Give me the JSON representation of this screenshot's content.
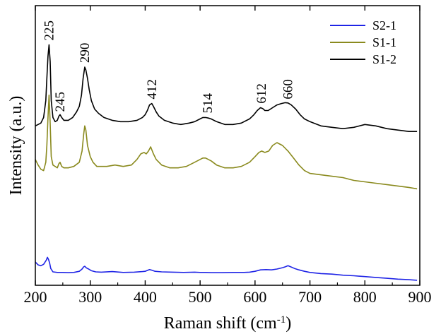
{
  "chart_data": {
    "type": "line",
    "xlabel": "Raman shift (cm",
    "xlabel_sup": "-1",
    "xlabel_suffix": ")",
    "ylabel": "Intensity (a.u.)",
    "xlim": [
      200,
      900
    ],
    "ylim": [
      0,
      1
    ],
    "x_ticks": [
      200,
      300,
      400,
      500,
      600,
      700,
      800,
      900
    ],
    "x_tick_labels": [
      "200",
      "300",
      "400",
      "500",
      "600",
      "700",
      "800",
      "900"
    ],
    "y_tick_labels_shown": false,
    "grid": false,
    "legend_position": "top-right",
    "series": [
      {
        "name": "S2-1",
        "color": "#1f24e6",
        "x": [
          200,
          205,
          210,
          215,
          220,
          222,
          224,
          226,
          228,
          232,
          240,
          250,
          260,
          270,
          280,
          285,
          288,
          290,
          293,
          297,
          302,
          310,
          320,
          340,
          360,
          380,
          395,
          400,
          405,
          408,
          412,
          418,
          430,
          450,
          470,
          490,
          500,
          510,
          520,
          540,
          560,
          580,
          590,
          600,
          610,
          620,
          630,
          640,
          650,
          655,
          660,
          665,
          672,
          680,
          690,
          700,
          720,
          740,
          760,
          780,
          800,
          820,
          840,
          860,
          880,
          895
        ],
        "y": [
          0.083,
          0.073,
          0.07,
          0.075,
          0.09,
          0.1,
          0.092,
          0.08,
          0.06,
          0.048,
          0.046,
          0.046,
          0.045,
          0.046,
          0.05,
          0.058,
          0.066,
          0.068,
          0.062,
          0.058,
          0.052,
          0.048,
          0.047,
          0.049,
          0.046,
          0.047,
          0.049,
          0.05,
          0.054,
          0.056,
          0.054,
          0.05,
          0.048,
          0.047,
          0.046,
          0.047,
          0.046,
          0.046,
          0.045,
          0.045,
          0.046,
          0.046,
          0.047,
          0.05,
          0.055,
          0.056,
          0.055,
          0.058,
          0.063,
          0.066,
          0.07,
          0.066,
          0.06,
          0.055,
          0.05,
          0.046,
          0.042,
          0.04,
          0.036,
          0.034,
          0.031,
          0.028,
          0.025,
          0.022,
          0.02,
          0.018
        ]
      },
      {
        "name": "S1-1",
        "color": "#8a8a1e",
        "x": [
          200,
          205,
          210,
          215,
          219,
          221,
          223,
          225,
          227,
          229,
          232,
          236,
          240,
          243,
          245,
          248,
          252,
          260,
          270,
          280,
          285,
          288,
          290,
          292,
          295,
          300,
          305,
          312,
          320,
          330,
          345,
          360,
          375,
          385,
          392,
          398,
          402,
          406,
          410,
          415,
          420,
          430,
          445,
          460,
          475,
          490,
          500,
          505,
          510,
          515,
          520,
          530,
          545,
          560,
          575,
          590,
          600,
          607,
          612,
          618,
          625,
          632,
          640,
          645,
          650,
          660,
          670,
          680,
          690,
          700,
          720,
          740,
          760,
          780,
          800,
          820,
          840,
          860,
          880,
          895
        ],
        "y": [
          0.45,
          0.43,
          0.415,
          0.41,
          0.44,
          0.5,
          0.6,
          0.68,
          0.58,
          0.46,
          0.43,
          0.425,
          0.42,
          0.435,
          0.44,
          0.425,
          0.42,
          0.42,
          0.425,
          0.44,
          0.48,
          0.54,
          0.57,
          0.555,
          0.5,
          0.46,
          0.44,
          0.425,
          0.425,
          0.425,
          0.43,
          0.425,
          0.43,
          0.45,
          0.47,
          0.475,
          0.47,
          0.48,
          0.495,
          0.47,
          0.45,
          0.43,
          0.42,
          0.42,
          0.425,
          0.44,
          0.45,
          0.455,
          0.455,
          0.45,
          0.445,
          0.43,
          0.42,
          0.42,
          0.425,
          0.44,
          0.46,
          0.475,
          0.48,
          0.475,
          0.48,
          0.5,
          0.51,
          0.505,
          0.5,
          0.48,
          0.455,
          0.43,
          0.41,
          0.4,
          0.395,
          0.39,
          0.385,
          0.375,
          0.37,
          0.365,
          0.36,
          0.355,
          0.35,
          0.345
        ]
      },
      {
        "name": "S1-2",
        "color": "#000000",
        "x": [
          200,
          205,
          210,
          215,
          219,
          221,
          223,
          225,
          227,
          229,
          232,
          236,
          240,
          243,
          245,
          248,
          252,
          260,
          268,
          275,
          280,
          284,
          287,
          290,
          292,
          295,
          298,
          302,
          308,
          315,
          325,
          340,
          355,
          370,
          385,
          395,
          400,
          404,
          408,
          412,
          415,
          420,
          425,
          435,
          450,
          465,
          480,
          490,
          500,
          505,
          510,
          515,
          520,
          530,
          545,
          560,
          575,
          590,
          598,
          604,
          610,
          614,
          618,
          624,
          632,
          640,
          648,
          655,
          660,
          666,
          674,
          682,
          690,
          700,
          720,
          740,
          760,
          780,
          800,
          820,
          840,
          860,
          880,
          895
        ],
        "y": [
          0.57,
          0.575,
          0.58,
          0.6,
          0.66,
          0.74,
          0.82,
          0.86,
          0.8,
          0.66,
          0.6,
          0.585,
          0.59,
          0.605,
          0.61,
          0.6,
          0.59,
          0.59,
          0.6,
          0.62,
          0.64,
          0.68,
          0.74,
          0.78,
          0.77,
          0.74,
          0.7,
          0.66,
          0.63,
          0.615,
          0.6,
          0.59,
          0.585,
          0.585,
          0.59,
          0.6,
          0.61,
          0.625,
          0.645,
          0.65,
          0.64,
          0.62,
          0.605,
          0.59,
          0.58,
          0.575,
          0.58,
          0.585,
          0.595,
          0.6,
          0.6,
          0.598,
          0.595,
          0.585,
          0.575,
          0.575,
          0.58,
          0.595,
          0.61,
          0.625,
          0.635,
          0.632,
          0.625,
          0.625,
          0.635,
          0.645,
          0.65,
          0.653,
          0.652,
          0.645,
          0.63,
          0.61,
          0.595,
          0.585,
          0.57,
          0.565,
          0.56,
          0.565,
          0.575,
          0.57,
          0.56,
          0.555,
          0.55,
          0.55
        ]
      }
    ],
    "annotations": [
      {
        "text": "225",
        "x": 225,
        "y": 0.875
      },
      {
        "text": "245",
        "x": 245,
        "y": 0.62
      },
      {
        "text": "290",
        "x": 290,
        "y": 0.795
      },
      {
        "text": "412",
        "x": 412,
        "y": 0.665
      },
      {
        "text": "514",
        "x": 514,
        "y": 0.615
      },
      {
        "text": "612",
        "x": 612,
        "y": 0.65
      },
      {
        "text": "660",
        "x": 660,
        "y": 0.665
      }
    ]
  }
}
